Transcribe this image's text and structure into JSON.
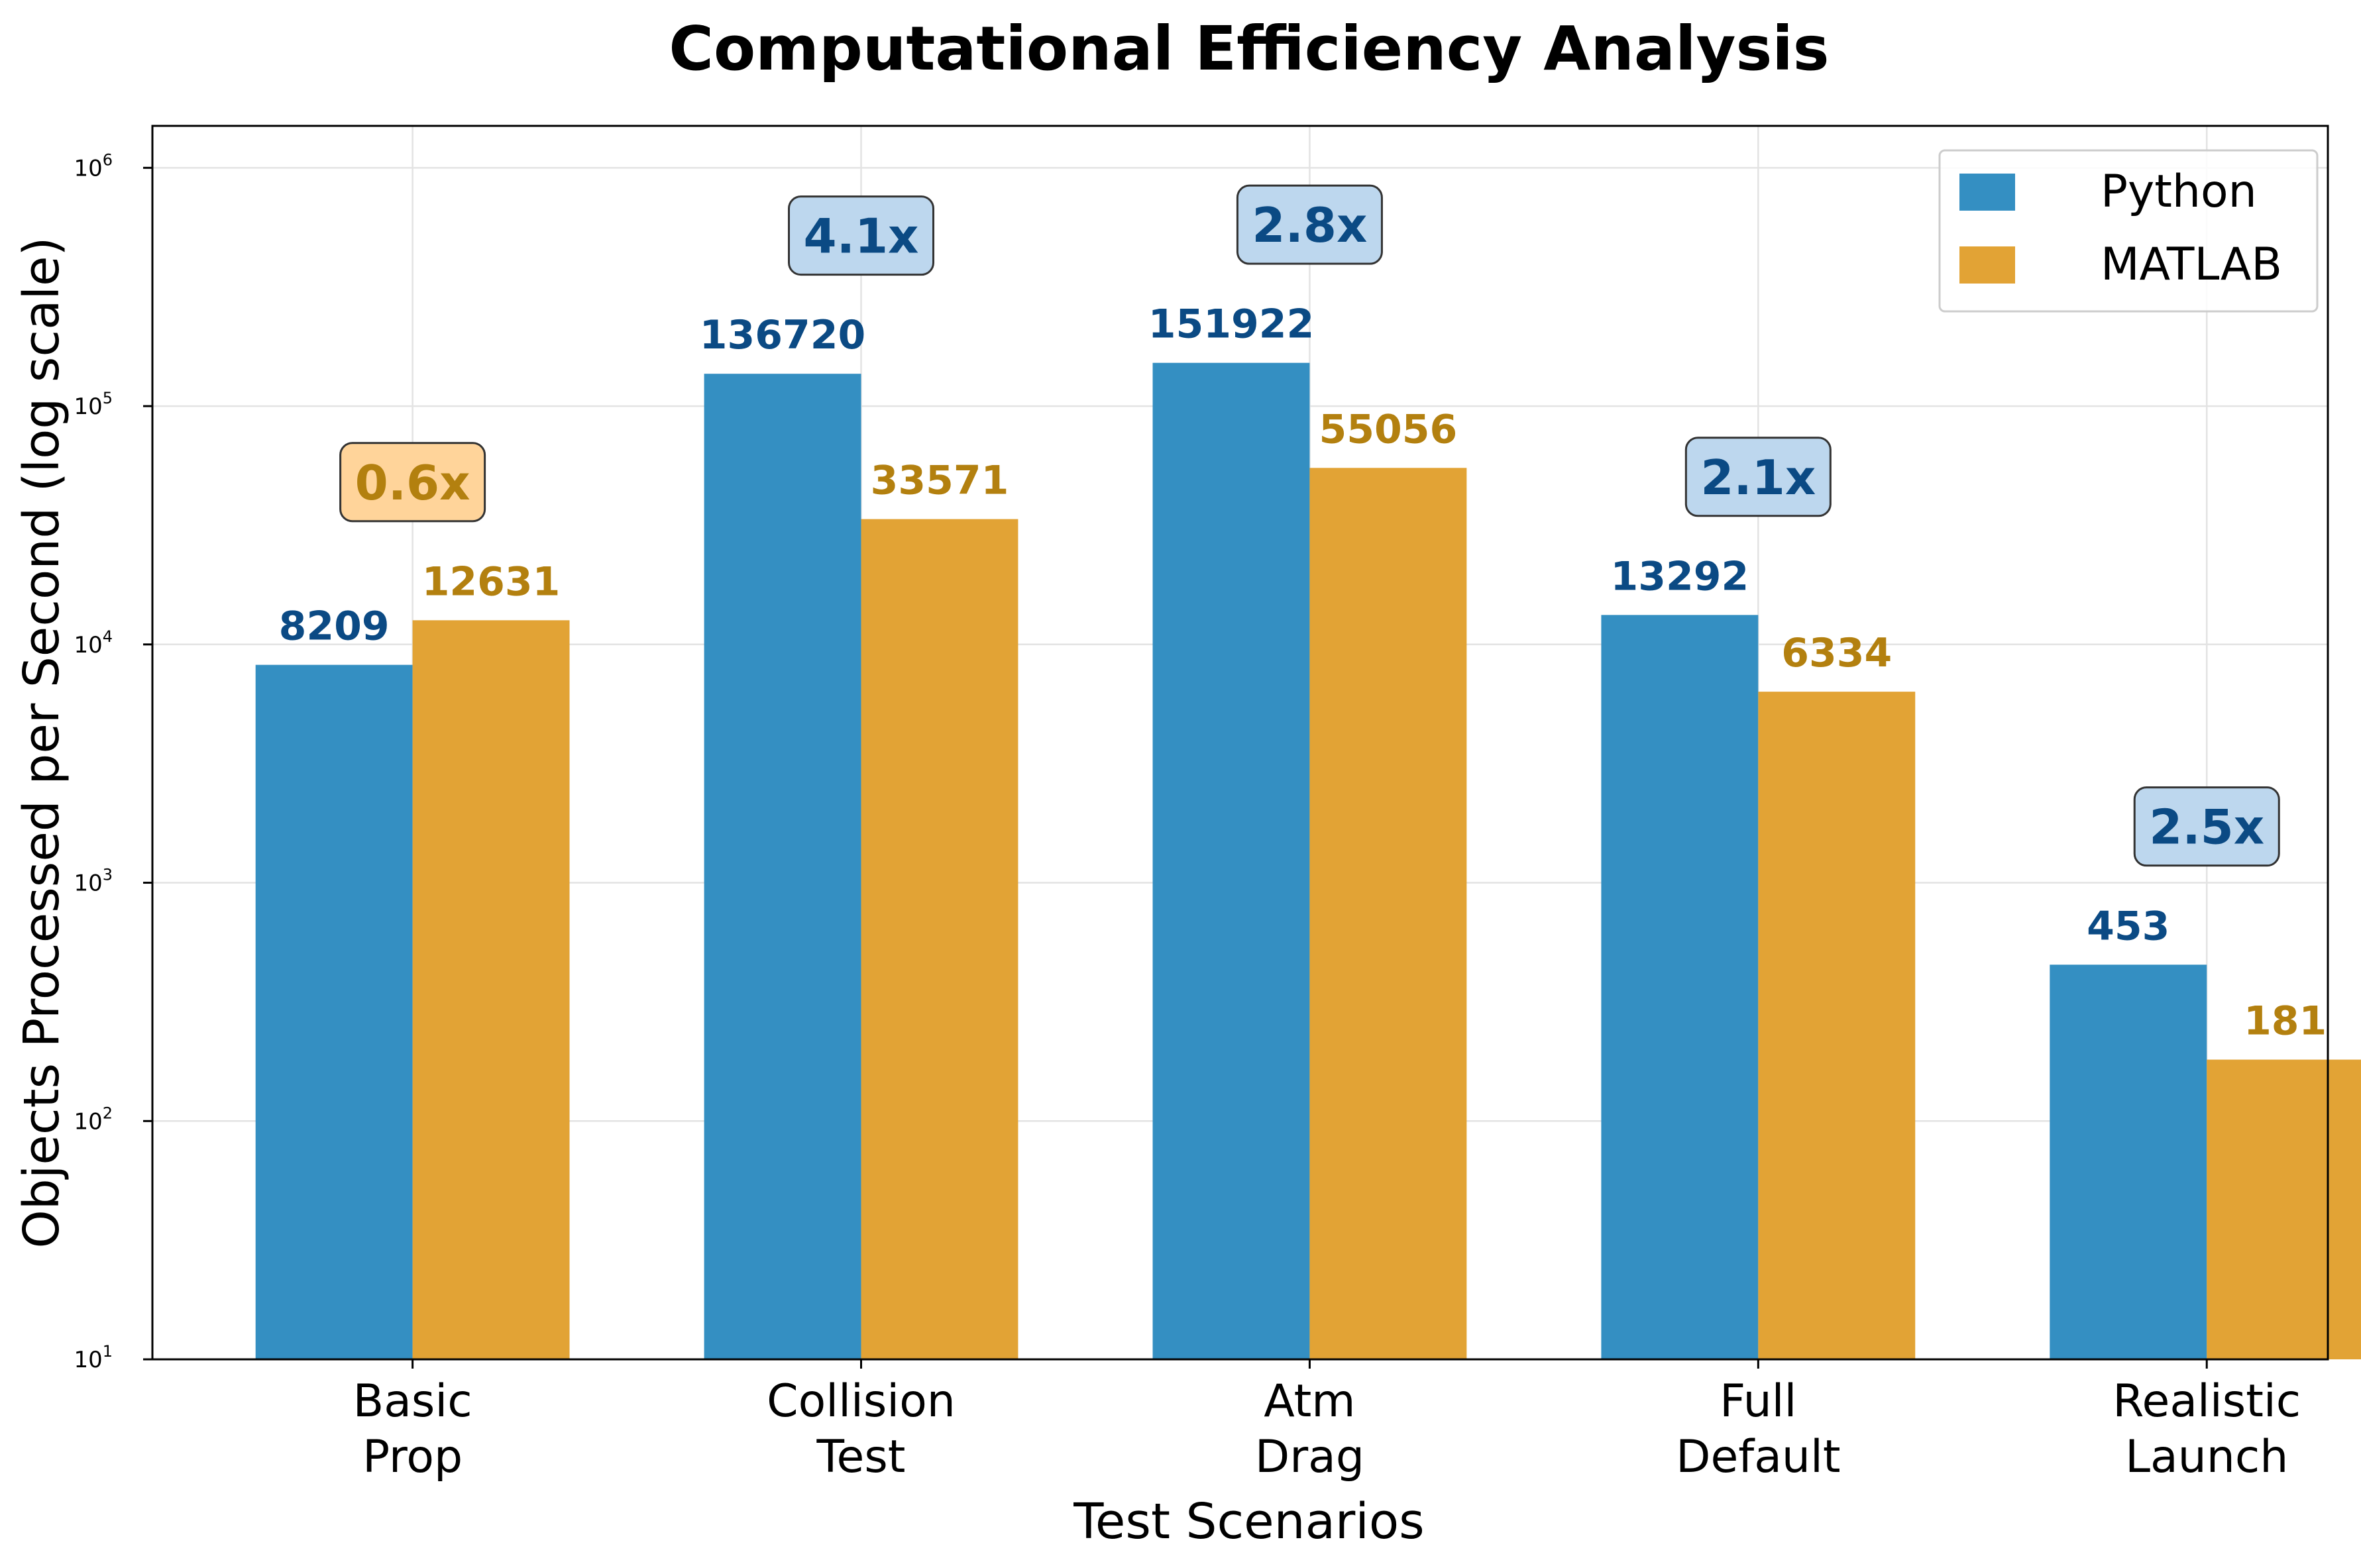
{
  "colors": {
    "python": "#348FC2",
    "matlab": "#E2A335",
    "python_label": "#0B4A84",
    "matlab_label": "#B3800F",
    "python_box_fill": "#BDD7EE",
    "matlab_box_fill": "#FFD49A",
    "box_edge": "#333333"
  },
  "chart_data": {
    "type": "bar",
    "title": "Computational Efficiency Analysis",
    "xlabel": "Test Scenarios",
    "ylabel": "Objects Processed per Second (log scale)",
    "yscale": "log",
    "ylim": [
      10,
      1500000
    ],
    "yticks": [
      {
        "base": "10",
        "exp": "1",
        "value": 10
      },
      {
        "base": "10",
        "exp": "2",
        "value": 100
      },
      {
        "base": "10",
        "exp": "3",
        "value": 1000
      },
      {
        "base": "10",
        "exp": "4",
        "value": 10000
      },
      {
        "base": "10",
        "exp": "5",
        "value": 100000
      },
      {
        "base": "10",
        "exp": "6",
        "value": 1000000
      }
    ],
    "grid": true,
    "legend_position": "top-right",
    "categories": [
      [
        "Basic",
        "Prop"
      ],
      [
        "Collision",
        "Test"
      ],
      [
        "Atm",
        "Drag"
      ],
      [
        "Full",
        "Default"
      ],
      [
        "Realistic",
        "Launch"
      ]
    ],
    "series": [
      {
        "name": "Python",
        "values": [
          8209,
          136720,
          151922,
          13292,
          453
        ],
        "labels": [
          "8209",
          "136720",
          "151922",
          "13292",
          "453"
        ]
      },
      {
        "name": "MATLAB",
        "values": [
          12631,
          33571,
          55056,
          6334,
          181
        ],
        "labels": [
          "12631",
          "33571",
          "55056",
          "6334",
          "181"
        ]
      }
    ],
    "ratios": [
      {
        "text": "0.6x",
        "winner": "MATLAB"
      },
      {
        "text": "4.1x",
        "winner": "Python"
      },
      {
        "text": "2.8x",
        "winner": "Python"
      },
      {
        "text": "2.1x",
        "winner": "Python"
      },
      {
        "text": "2.5x",
        "winner": "Python"
      }
    ]
  }
}
